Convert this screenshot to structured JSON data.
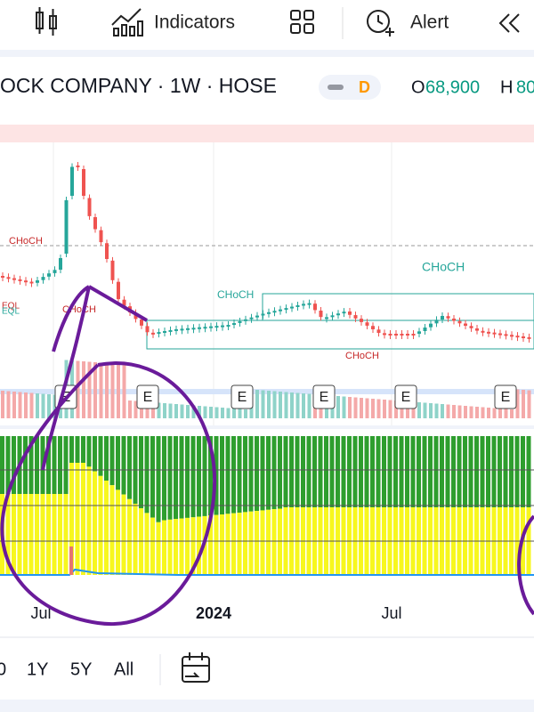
{
  "toolbar": {
    "indicators": "Indicators",
    "alert": "Alert"
  },
  "header": {
    "symbol": "OCK COMPANY · 1W · HOSE",
    "badge": "D",
    "open_label": "O",
    "open": "68,900",
    "high_label": "H",
    "high": "80"
  },
  "chart": {
    "choch_labels": [
      "CHoCH",
      "CHoCH",
      "CHoCH",
      "CHoCH",
      "CHoCH"
    ],
    "eql_labels": [
      "EQL",
      "EQL"
    ],
    "earnings_markers": [
      "E",
      "E",
      "E",
      "E",
      "E",
      "E"
    ],
    "x_labels": [
      "Jul",
      "2024",
      "Jul"
    ]
  },
  "ranges": [
    "0",
    "1Y",
    "5Y",
    "All"
  ]
}
